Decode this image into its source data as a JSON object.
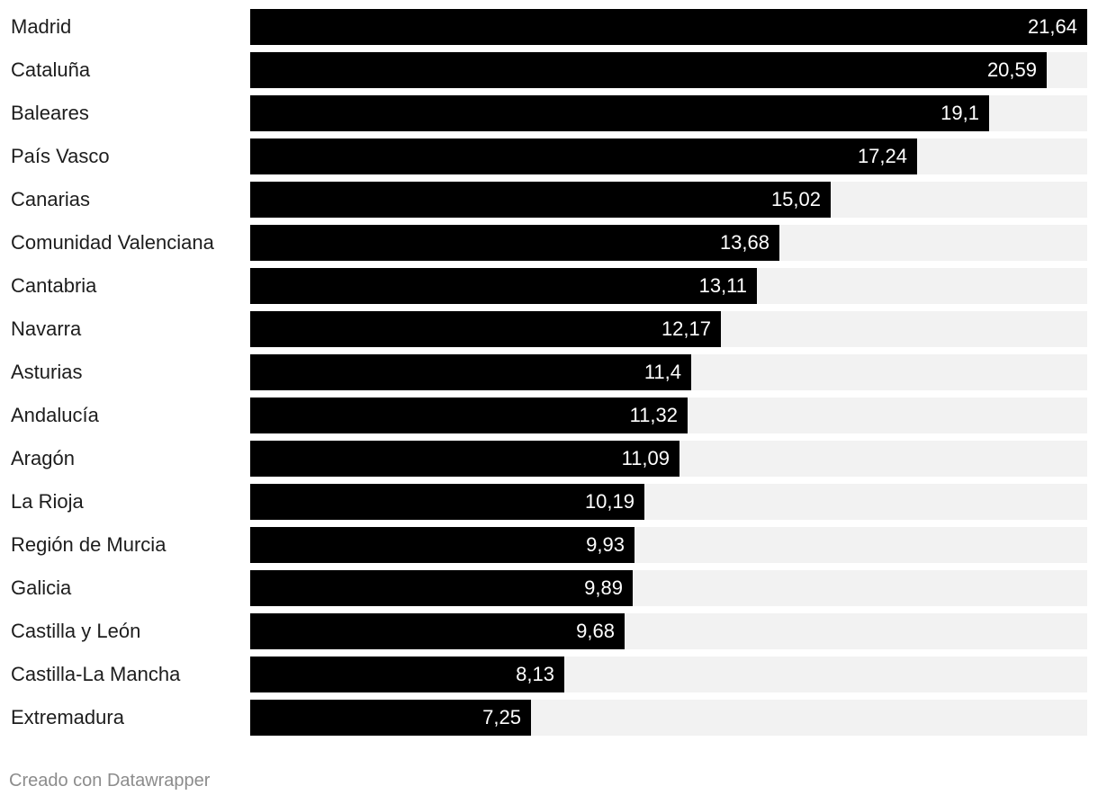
{
  "colors": {
    "bar": "#000000",
    "track": "#f2f2f2",
    "label": "#1d1d1d",
    "value_label": "#ffffff",
    "credit": "#8c8c8c"
  },
  "chart_data": {
    "type": "bar",
    "orientation": "horizontal",
    "title": "",
    "xlabel": "",
    "ylabel": "",
    "xlim": [
      0,
      21.64
    ],
    "grid": false,
    "categories": [
      "Madrid",
      "Cataluña",
      "Baleares",
      "País Vasco",
      "Canarias",
      "Comunidad Valenciana",
      "Cantabria",
      "Navarra",
      "Asturias",
      "Andalucía",
      "Aragón",
      "La Rioja",
      "Región de Murcia",
      "Galicia",
      "Castilla y León",
      "Castilla-La Mancha",
      "Extremadura"
    ],
    "values": [
      21.64,
      20.59,
      19.1,
      17.24,
      15.02,
      13.68,
      13.11,
      12.17,
      11.4,
      11.32,
      11.09,
      10.19,
      9.93,
      9.89,
      9.68,
      8.13,
      7.25
    ],
    "value_labels": [
      "21,64",
      "20,59",
      "19,1",
      "17,24",
      "15,02",
      "13,68",
      "13,11",
      "12,17",
      "11,4",
      "11,32",
      "11,09",
      "10,19",
      "9,93",
      "9,89",
      "9,68",
      "8,13",
      "7,25"
    ]
  },
  "footer": {
    "credit": "Creado con Datawrapper"
  }
}
